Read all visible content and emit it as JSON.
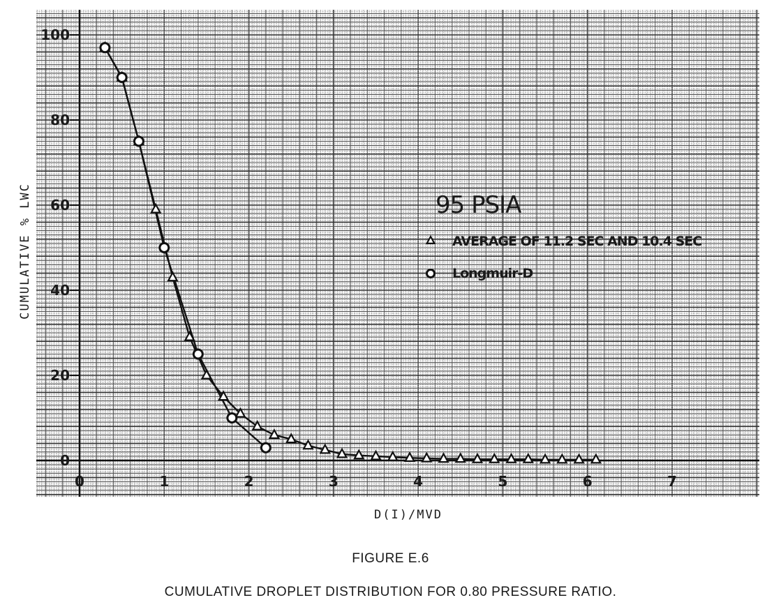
{
  "chart_data": {
    "type": "line",
    "title": "95 PSIA",
    "xlabel": "D(I)/MVD",
    "ylabel": "CUMULATIVE % LWC",
    "xlim": [
      0,
      7
    ],
    "ylim": [
      0,
      100
    ],
    "x_ticks": [
      "0",
      "1",
      "2",
      "3",
      "4",
      "5",
      "6",
      "7"
    ],
    "y_ticks": [
      "0",
      "20",
      "40",
      "60",
      "80",
      "100"
    ],
    "grid": true,
    "legend_position": "right",
    "series": [
      {
        "name": "AVERAGE OF 11.2 SEC AND 10.4 SEC",
        "marker": "triangle",
        "x": [
          0.3,
          0.5,
          0.7,
          0.9,
          1.1,
          1.3,
          1.5,
          1.7,
          1.9,
          2.1,
          2.3,
          2.5,
          2.7,
          2.9,
          3.1,
          3.3,
          3.5,
          3.7,
          3.9,
          4.1,
          4.3,
          4.5,
          4.7,
          4.9,
          5.1,
          5.3,
          5.5,
          5.7,
          5.9,
          6.1
        ],
        "y": [
          97,
          90,
          75,
          59,
          43,
          29,
          20,
          15,
          11,
          8,
          6,
          5,
          3.5,
          2.5,
          1.5,
          1.2,
          1,
          0.8,
          0.6,
          0.5,
          0.4,
          0.4,
          0.3,
          0.3,
          0.3,
          0.3,
          0.2,
          0.2,
          0.2,
          0.2
        ]
      },
      {
        "name": "Longmuir-D",
        "marker": "circle",
        "x": [
          0.3,
          0.5,
          0.7,
          1.0,
          1.4,
          1.8,
          2.2
        ],
        "y": [
          97,
          90,
          75,
          50,
          25,
          10,
          3
        ]
      }
    ]
  },
  "figure_number": "FIGURE E.6",
  "caption": "CUMULATIVE DROPLET DISTRIBUTION FOR 0.80 PRESSURE RATIO."
}
